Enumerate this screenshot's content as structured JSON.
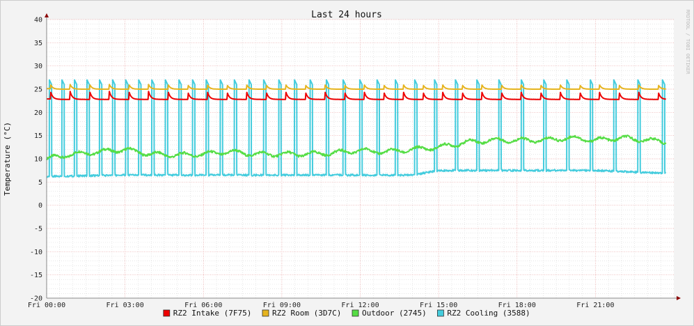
{
  "chart_data": {
    "type": "line",
    "title": "Last 24 hours",
    "ylabel": "Temperature (°C)",
    "xlabel": "",
    "watermark": "RRDTOOL / TOBI OETIKER",
    "ylim": [
      -20,
      40
    ],
    "yticks": [
      40,
      35,
      30,
      25,
      20,
      15,
      10,
      5,
      0,
      -5,
      -10,
      -15,
      -20
    ],
    "xlim_hours": [
      0,
      24
    ],
    "xticks": [
      {
        "hour": 0,
        "label": "Fri 00:00"
      },
      {
        "hour": 3,
        "label": "Fri 03:00"
      },
      {
        "hour": 6,
        "label": "Fri 06:00"
      },
      {
        "hour": 9,
        "label": "Fri 09:00"
      },
      {
        "hour": 12,
        "label": "Fri 12:00"
      },
      {
        "hour": 15,
        "label": "Fri 15:00"
      },
      {
        "hour": 18,
        "label": "Fri 18:00"
      },
      {
        "hour": 21,
        "label": "Fri 21:00"
      }
    ],
    "grid": true,
    "legend_position": "bottom",
    "colors": {
      "background": "#f3f3f3",
      "plot_area": "#ffffff",
      "minor_grid": "#d8d8d8",
      "major_grid": "#e8a0a0",
      "axis": "#888888",
      "arrow": "#8b0000"
    },
    "series": [
      {
        "name": "RZ2 Intake (7F75)",
        "color": "#ee0000",
        "kind": "sawtooth",
        "cycle_hours": 0.75,
        "start_hour": 0.15,
        "peak": 24.5,
        "base": 22.8
      },
      {
        "name": "RZ2 Room (3D7C)",
        "color": "#e6b41e",
        "kind": "sawtooth",
        "cycle_hours": 0.75,
        "start_hour": 0.15,
        "peak": 26.0,
        "base": 25.0
      },
      {
        "name": "Outdoor (2745)",
        "color": "#55dd44",
        "kind": "trend",
        "x": [
          0,
          1,
          2,
          3,
          4,
          5,
          6,
          7,
          8,
          9,
          10,
          11,
          12,
          13,
          14,
          15,
          16,
          17,
          18,
          19,
          20,
          21,
          22,
          23,
          24
        ],
        "values": [
          10,
          11,
          11.5,
          12,
          11,
          10.8,
          11,
          11.5,
          11,
          11,
          11,
          11.3,
          11.8,
          11.5,
          12,
          12.5,
          13.5,
          14,
          14,
          14,
          14.5,
          14,
          14.5,
          14,
          13.6
        ]
      },
      {
        "name": "RZ2 Cooling (3588)",
        "color": "#44ccdd",
        "kind": "pulse",
        "start_hour": 0.1,
        "pulse_hours": 0.09,
        "peak": 27,
        "x": [
          0,
          3,
          6,
          9,
          12,
          14,
          15,
          18,
          21,
          24
        ],
        "baseline": [
          6.2,
          6.5,
          6.5,
          6.5,
          6.5,
          6.5,
          7.5,
          7.5,
          7.5,
          6.8
        ],
        "gap_x": [
          0,
          6,
          12,
          15,
          18,
          24
        ],
        "gap_hours": [
          0.36,
          0.42,
          0.55,
          0.7,
          0.75,
          0.85
        ]
      }
    ]
  },
  "legend": {
    "items": [
      {
        "label": "RZ2 Intake (7F75)",
        "color": "#ee0000"
      },
      {
        "label": "RZ2 Room (3D7C)",
        "color": "#e6b41e"
      },
      {
        "label": "Outdoor (2745)",
        "color": "#55dd44"
      },
      {
        "label": "RZ2 Cooling (3588)",
        "color": "#44ccdd"
      }
    ]
  }
}
